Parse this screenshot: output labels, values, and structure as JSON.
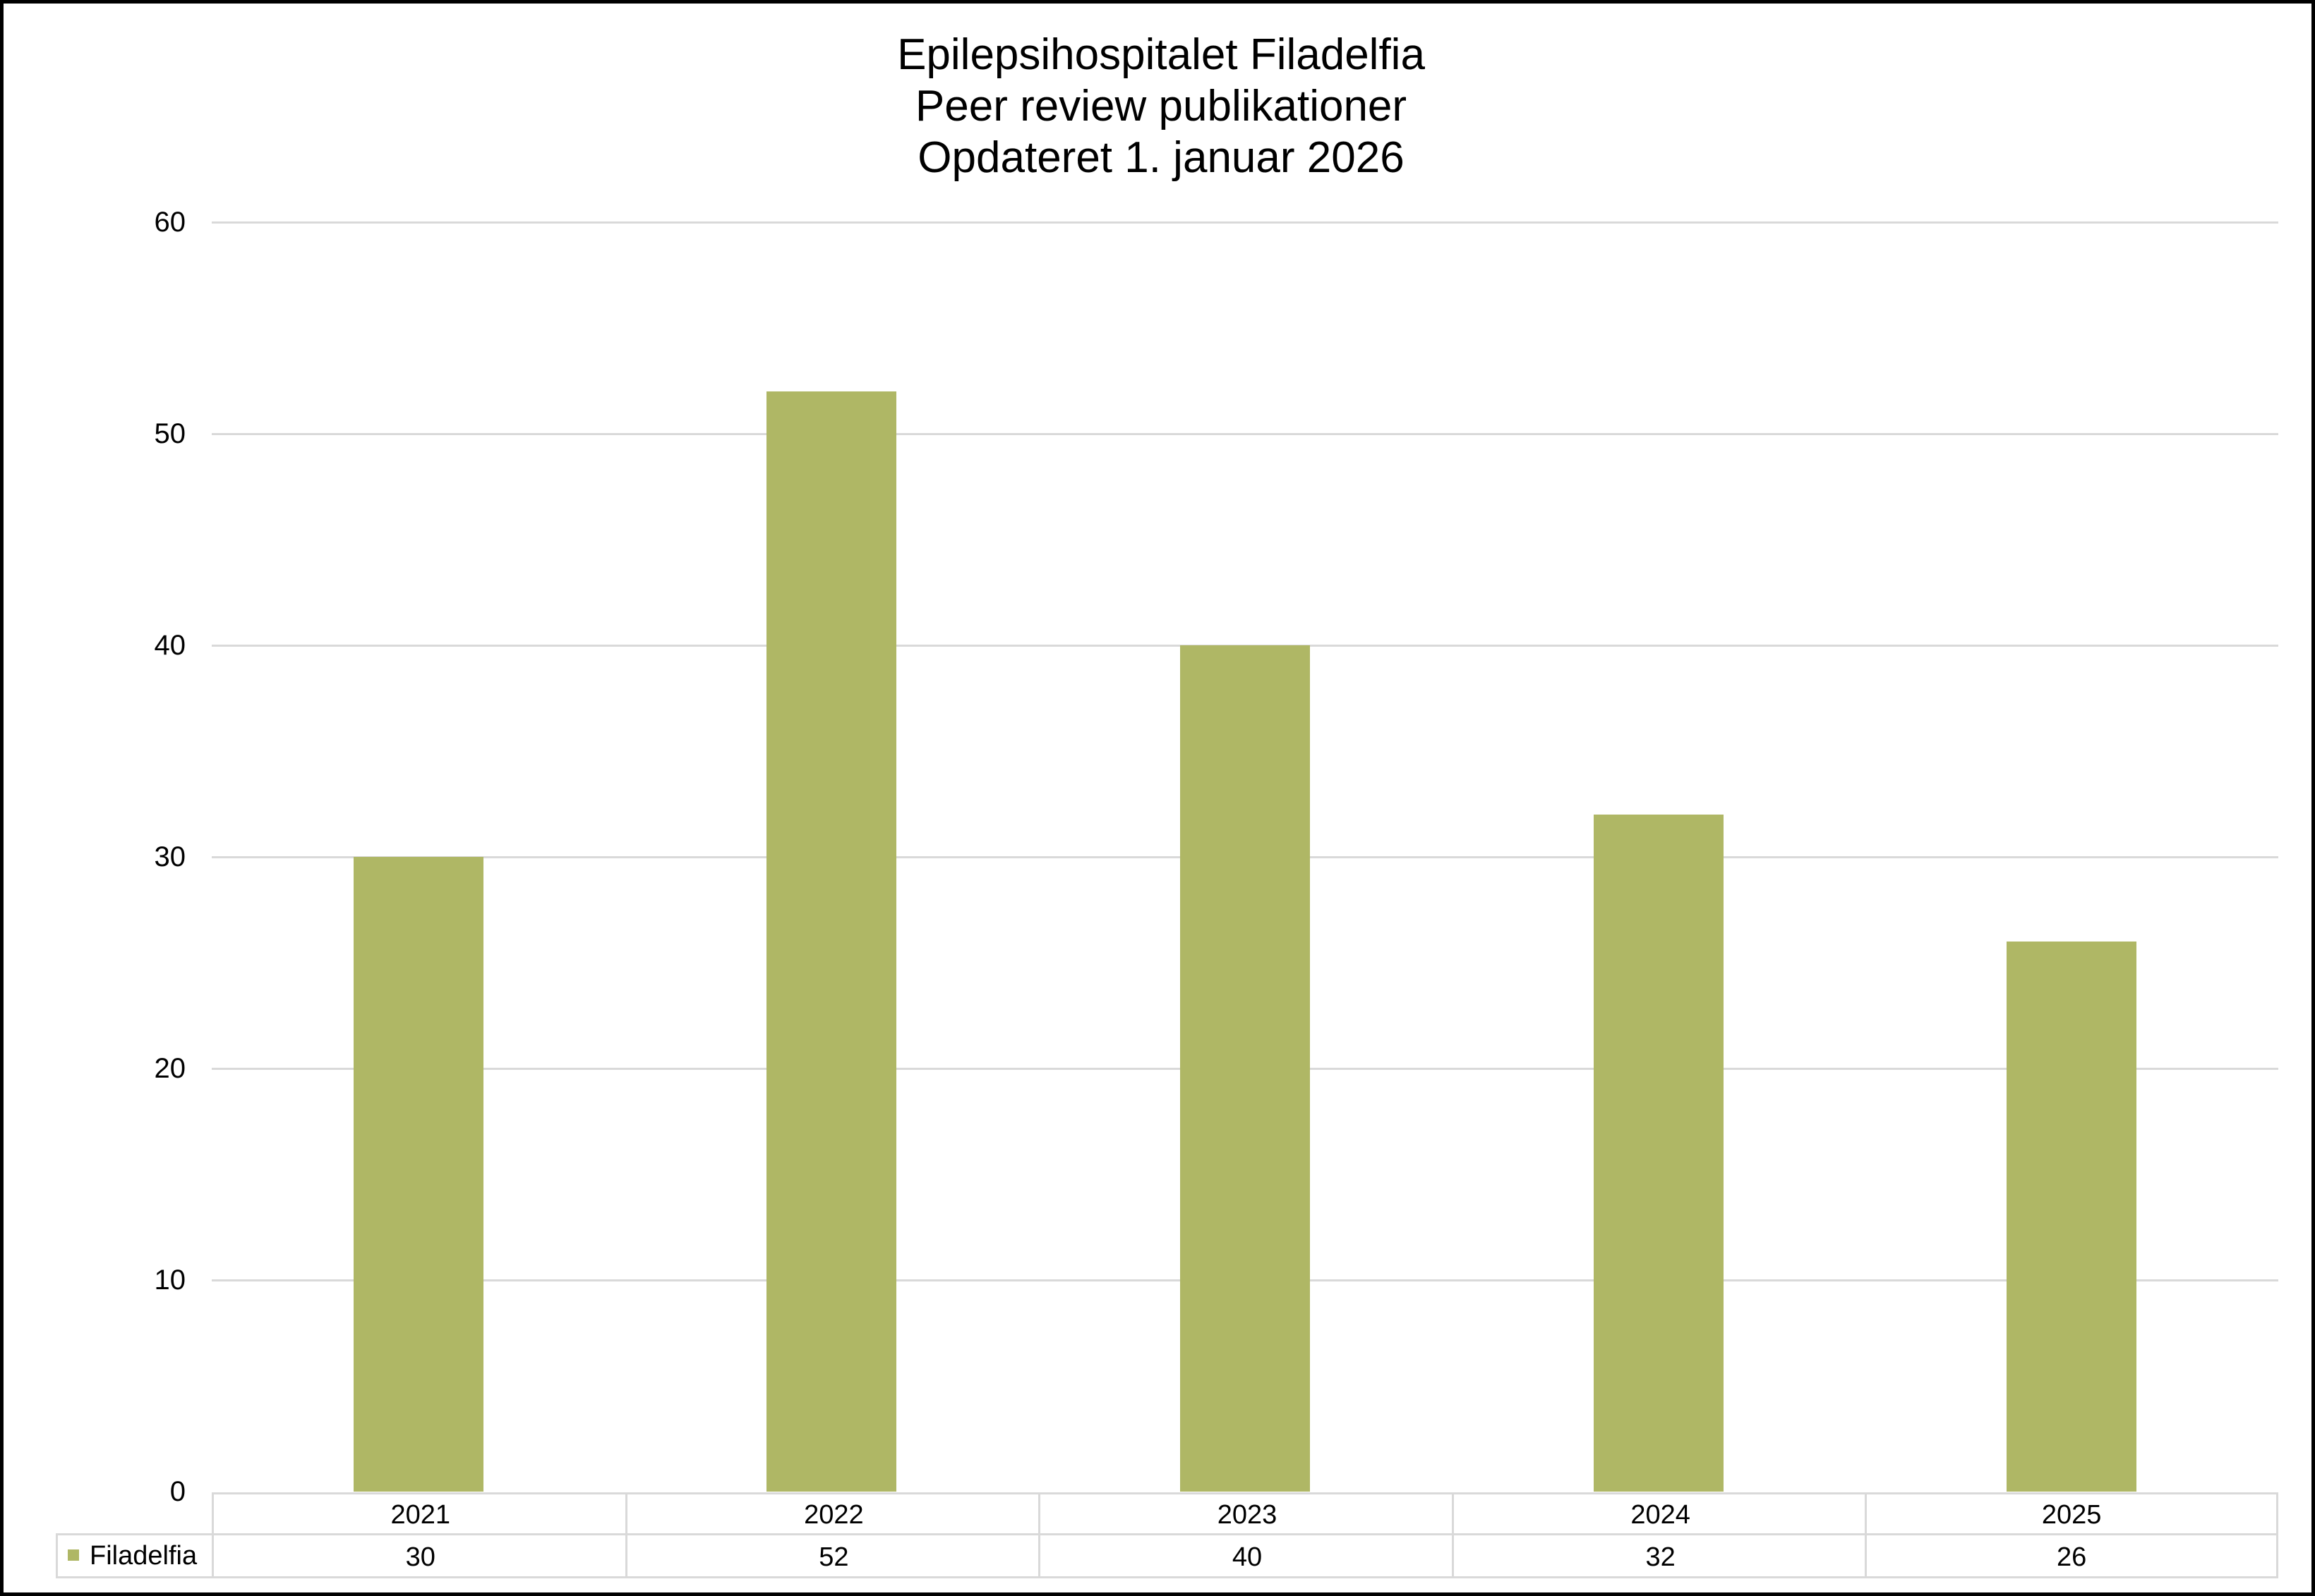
{
  "chart_data": {
    "type": "bar",
    "title": "Epilepsihospitalet Filadelfia\nPeer review publikationer\nOpdateret 1. januar 2026",
    "title_lines": [
      "Epilepsihospitalet Filadelfia",
      "Peer review publikationer",
      "Opdateret 1. januar 2026"
    ],
    "categories": [
      "2021",
      "2022",
      "2023",
      "2024",
      "2025"
    ],
    "series": [
      {
        "name": "Filadelfia",
        "color": "#AFB765",
        "values": [
          30,
          52,
          40,
          32,
          26
        ]
      }
    ],
    "xlabel": "",
    "ylabel": "",
    "ylim": [
      0,
      60
    ],
    "yticks": [
      0,
      10,
      20,
      30,
      40,
      50,
      60
    ],
    "grid": true,
    "legend_position": "data-table (bottom)",
    "data_table": true
  },
  "colors": {
    "bar": "#AFB765",
    "gridline": "#D9D9D9",
    "frame": "#000000",
    "background": "#FFFFFF"
  }
}
